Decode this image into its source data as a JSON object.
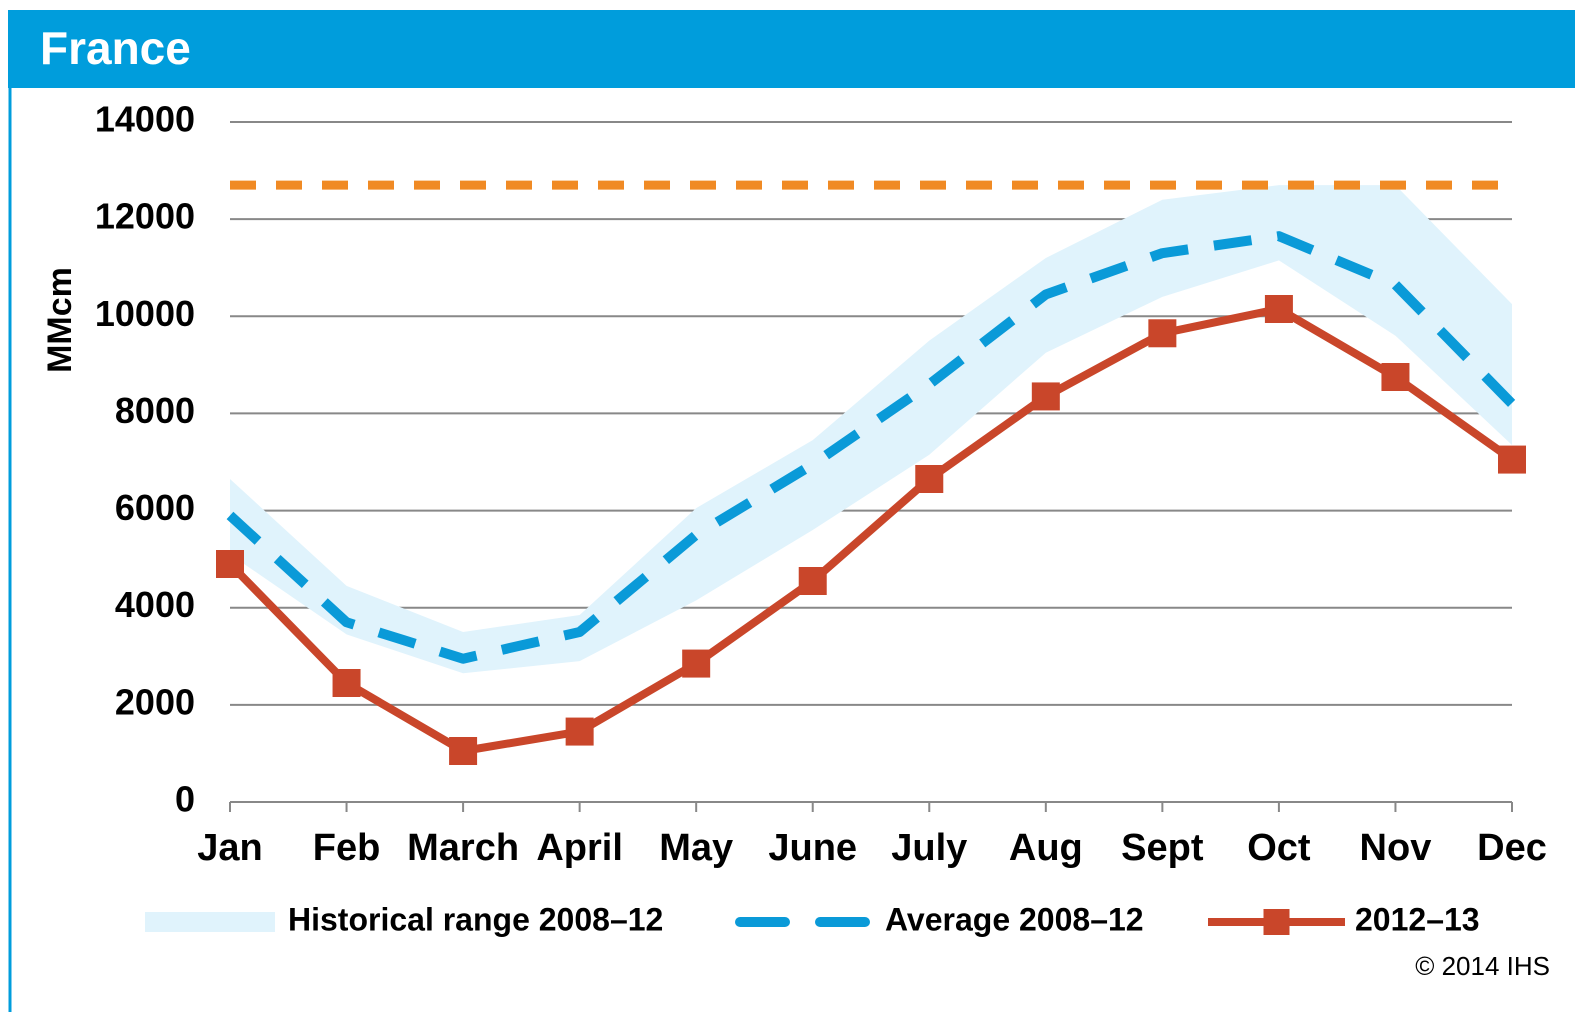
{
  "chart_data": {
    "type": "line",
    "title": "France",
    "y_label": "MMcm",
    "categories": [
      "Jan",
      "Feb",
      "March",
      "April",
      "May",
      "June",
      "July",
      "Aug",
      "Sept",
      "Oct",
      "Nov",
      "Dec"
    ],
    "series": [
      {
        "name": "Historical range 2008–12",
        "color": "#e0f3fc",
        "kind": "band",
        "low": [
          5100,
          3450,
          2650,
          2900,
          4150,
          5600,
          7150,
          9250,
          10400,
          11150,
          9600,
          7350
        ],
        "values": [
          6650,
          4450,
          3500,
          3850,
          6050,
          7450,
          9500,
          11200,
          12400,
          12700,
          12700,
          10250
        ]
      },
      {
        "name": "Average  2008–12",
        "color": "#0a9ad8",
        "kind": "dashed",
        "values": [
          5900,
          3700,
          2950,
          3500,
          5500,
          6950,
          8600,
          10450,
          11300,
          11650,
          10650,
          8200
        ]
      },
      {
        "name": "2012–13",
        "color": "#c9462a",
        "kind": "markers",
        "values": [
          4900,
          2450,
          1050,
          1450,
          2850,
          4550,
          6650,
          8350,
          9650,
          10150,
          8750,
          7050
        ]
      }
    ],
    "reference_line": {
      "value": 12700,
      "color": "#f08a24"
    },
    "ylim": [
      0,
      14000
    ],
    "yticks": [
      0,
      2000,
      4000,
      6000,
      8000,
      10000,
      12000,
      14000
    ],
    "grid": true,
    "legend": "bottom",
    "source": "© 2014  IHS"
  }
}
